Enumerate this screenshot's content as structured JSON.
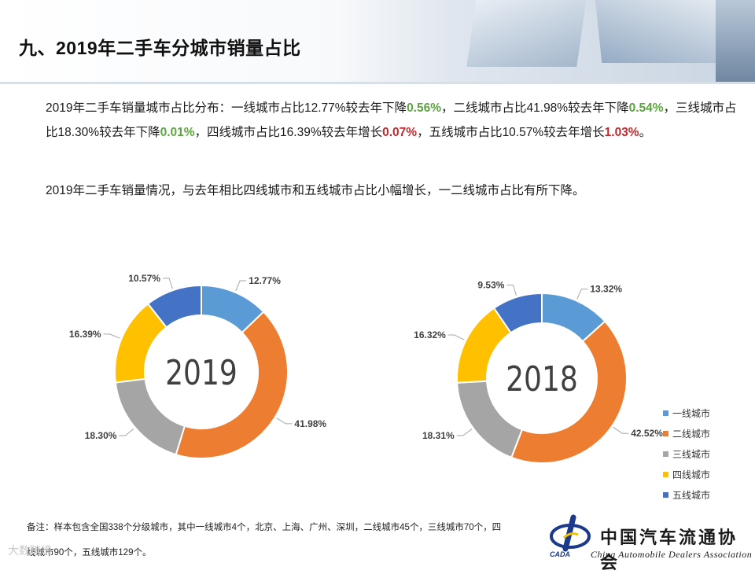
{
  "page": {
    "title": "九、2019年二手车分城市销量占比"
  },
  "paragraph1": {
    "seg1": "2019年二手车销量城市占比分布：一线城市占比12.77%较去年下降",
    "seg2": "0.56%",
    "seg3": "，二线城市占比41.98%较去年下降",
    "seg4": "0.54%",
    "seg5": "，三线城市占比18.30%较去年下降",
    "seg6": "0.01%",
    "seg7": "，四线城市占比16.39%较去年增长",
    "seg8": "0.07%",
    "seg9": "，五线城市占比10.57%较去年增长",
    "seg10": "1.03%",
    "seg11": "。"
  },
  "paragraph2": "2019年二手车销量情况，与去年相比四线城市和五线城市占比小幅增长，一二线城市占比有所下降。",
  "colors": {
    "highlight_green": "#5ba53f",
    "highlight_red": "#c0282d",
    "series": [
      "#5b9bd5",
      "#ed7d31",
      "#a5a5a5",
      "#ffc000",
      "#4472c4"
    ]
  },
  "chart_data": [
    {
      "type": "donut",
      "center_label": "2019",
      "categories": [
        "一线城市",
        "二线城市",
        "三线城市",
        "四线城市",
        "五线城市"
      ],
      "values": [
        12.77,
        41.98,
        18.3,
        16.39,
        10.57
      ],
      "labels": [
        "12.77%",
        "41.98%",
        "18.30%",
        "16.39%",
        "10.57%"
      ],
      "legend": "none"
    },
    {
      "type": "donut",
      "center_label": "2018",
      "categories": [
        "一线城市",
        "二线城市",
        "三线城市",
        "四线城市",
        "五线城市"
      ],
      "values": [
        13.32,
        42.52,
        18.31,
        16.32,
        9.53
      ],
      "labels": [
        "13.32%",
        "42.52%",
        "18.31%",
        "16.32%",
        "9.53%"
      ],
      "legend": "right"
    }
  ],
  "legend": {
    "items": [
      "一线城市",
      "二线城市",
      "三线城市",
      "四线城市",
      "五线城市"
    ]
  },
  "note": "备注：样本包含全国338个分级城市，其中一线城市4个，北京、上海、广州、深圳，二线城市45个，三线城市70个，四线城市90个，五线城市129个。",
  "logo": {
    "cn": "中国汽车流通协会",
    "en": "China Automobile Dealers Association",
    "abbr": "CADA"
  },
  "watermark": "大数跨境"
}
